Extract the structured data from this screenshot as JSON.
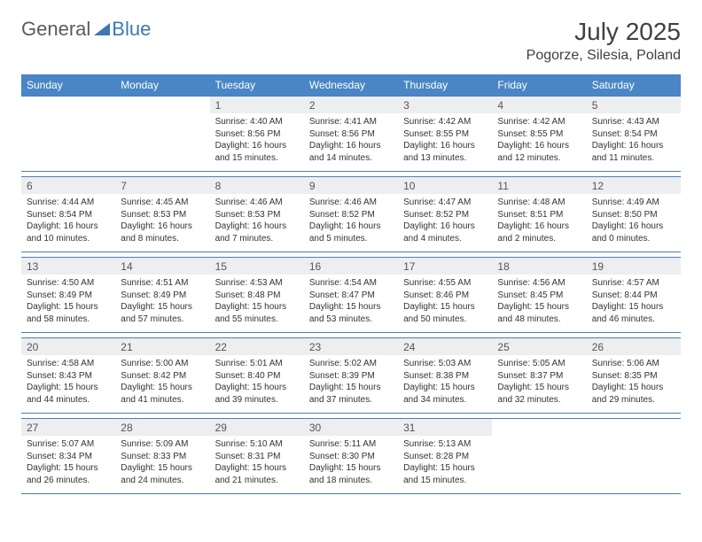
{
  "logo": {
    "general": "General",
    "blue": "Blue"
  },
  "title": "July 2025",
  "location": "Pogorze, Silesia, Poland",
  "header_bg": "#4a86c5",
  "header_fg": "#ffffff",
  "row_border": "#4a7fb5",
  "daynum_bg": "#eceef0",
  "weekdays": [
    "Sunday",
    "Monday",
    "Tuesday",
    "Wednesday",
    "Thursday",
    "Friday",
    "Saturday"
  ],
  "font_family": "Arial, Helvetica, sans-serif",
  "title_fontsize": 28,
  "location_fontsize": 16,
  "cell_fontsize": 10,
  "weeks": [
    [
      null,
      null,
      {
        "n": 1,
        "sr": "4:40 AM",
        "ss": "8:56 PM",
        "dl": "16 hours and 15 minutes."
      },
      {
        "n": 2,
        "sr": "4:41 AM",
        "ss": "8:56 PM",
        "dl": "16 hours and 14 minutes."
      },
      {
        "n": 3,
        "sr": "4:42 AM",
        "ss": "8:55 PM",
        "dl": "16 hours and 13 minutes."
      },
      {
        "n": 4,
        "sr": "4:42 AM",
        "ss": "8:55 PM",
        "dl": "16 hours and 12 minutes."
      },
      {
        "n": 5,
        "sr": "4:43 AM",
        "ss": "8:54 PM",
        "dl": "16 hours and 11 minutes."
      }
    ],
    [
      {
        "n": 6,
        "sr": "4:44 AM",
        "ss": "8:54 PM",
        "dl": "16 hours and 10 minutes."
      },
      {
        "n": 7,
        "sr": "4:45 AM",
        "ss": "8:53 PM",
        "dl": "16 hours and 8 minutes."
      },
      {
        "n": 8,
        "sr": "4:46 AM",
        "ss": "8:53 PM",
        "dl": "16 hours and 7 minutes."
      },
      {
        "n": 9,
        "sr": "4:46 AM",
        "ss": "8:52 PM",
        "dl": "16 hours and 5 minutes."
      },
      {
        "n": 10,
        "sr": "4:47 AM",
        "ss": "8:52 PM",
        "dl": "16 hours and 4 minutes."
      },
      {
        "n": 11,
        "sr": "4:48 AM",
        "ss": "8:51 PM",
        "dl": "16 hours and 2 minutes."
      },
      {
        "n": 12,
        "sr": "4:49 AM",
        "ss": "8:50 PM",
        "dl": "16 hours and 0 minutes."
      }
    ],
    [
      {
        "n": 13,
        "sr": "4:50 AM",
        "ss": "8:49 PM",
        "dl": "15 hours and 58 minutes."
      },
      {
        "n": 14,
        "sr": "4:51 AM",
        "ss": "8:49 PM",
        "dl": "15 hours and 57 minutes."
      },
      {
        "n": 15,
        "sr": "4:53 AM",
        "ss": "8:48 PM",
        "dl": "15 hours and 55 minutes."
      },
      {
        "n": 16,
        "sr": "4:54 AM",
        "ss": "8:47 PM",
        "dl": "15 hours and 53 minutes."
      },
      {
        "n": 17,
        "sr": "4:55 AM",
        "ss": "8:46 PM",
        "dl": "15 hours and 50 minutes."
      },
      {
        "n": 18,
        "sr": "4:56 AM",
        "ss": "8:45 PM",
        "dl": "15 hours and 48 minutes."
      },
      {
        "n": 19,
        "sr": "4:57 AM",
        "ss": "8:44 PM",
        "dl": "15 hours and 46 minutes."
      }
    ],
    [
      {
        "n": 20,
        "sr": "4:58 AM",
        "ss": "8:43 PM",
        "dl": "15 hours and 44 minutes."
      },
      {
        "n": 21,
        "sr": "5:00 AM",
        "ss": "8:42 PM",
        "dl": "15 hours and 41 minutes."
      },
      {
        "n": 22,
        "sr": "5:01 AM",
        "ss": "8:40 PM",
        "dl": "15 hours and 39 minutes."
      },
      {
        "n": 23,
        "sr": "5:02 AM",
        "ss": "8:39 PM",
        "dl": "15 hours and 37 minutes."
      },
      {
        "n": 24,
        "sr": "5:03 AM",
        "ss": "8:38 PM",
        "dl": "15 hours and 34 minutes."
      },
      {
        "n": 25,
        "sr": "5:05 AM",
        "ss": "8:37 PM",
        "dl": "15 hours and 32 minutes."
      },
      {
        "n": 26,
        "sr": "5:06 AM",
        "ss": "8:35 PM",
        "dl": "15 hours and 29 minutes."
      }
    ],
    [
      {
        "n": 27,
        "sr": "5:07 AM",
        "ss": "8:34 PM",
        "dl": "15 hours and 26 minutes."
      },
      {
        "n": 28,
        "sr": "5:09 AM",
        "ss": "8:33 PM",
        "dl": "15 hours and 24 minutes."
      },
      {
        "n": 29,
        "sr": "5:10 AM",
        "ss": "8:31 PM",
        "dl": "15 hours and 21 minutes."
      },
      {
        "n": 30,
        "sr": "5:11 AM",
        "ss": "8:30 PM",
        "dl": "15 hours and 18 minutes."
      },
      {
        "n": 31,
        "sr": "5:13 AM",
        "ss": "8:28 PM",
        "dl": "15 hours and 15 minutes."
      },
      null,
      null
    ]
  ]
}
